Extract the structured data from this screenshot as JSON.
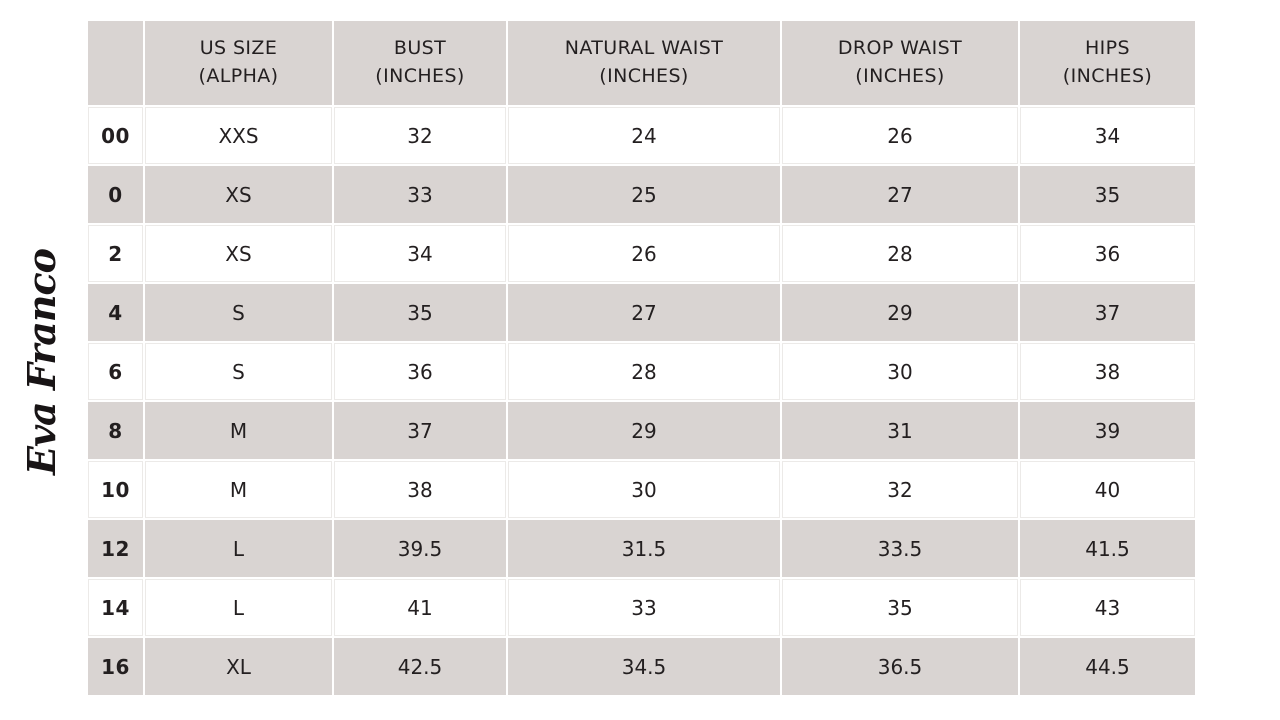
{
  "brand": {
    "logo_text": "Eva Franco"
  },
  "colors": {
    "header_bg": "#d9d4d2",
    "row_alt_bg": "#d9d4d2",
    "white_row_grid": "#eceae8",
    "text": "#231f20",
    "logo": "#181415"
  },
  "table": {
    "headers": [
      {
        "line1": "US SIZE",
        "line2": "(ALPHA)"
      },
      {
        "line1": "BUST",
        "line2": "(INCHES)"
      },
      {
        "line1": "NATURAL WAIST",
        "line2": "(INCHES)"
      },
      {
        "line1": "DROP WAIST",
        "line2": "(INCHES)"
      },
      {
        "line1": "HIPS",
        "line2": "(INCHES)"
      }
    ],
    "rows": [
      {
        "cells": [
          "00",
          "XXS",
          "32",
          "24",
          "26",
          "34"
        ]
      },
      {
        "cells": [
          "0",
          "XS",
          "33",
          "25",
          "27",
          "35"
        ]
      },
      {
        "cells": [
          "2",
          "XS",
          "34",
          "26",
          "28",
          "36"
        ]
      },
      {
        "cells": [
          "4",
          "S",
          "35",
          "27",
          "29",
          "37"
        ]
      },
      {
        "cells": [
          "6",
          "S",
          "36",
          "28",
          "30",
          "38"
        ]
      },
      {
        "cells": [
          "8",
          "M",
          "37",
          "29",
          "31",
          "39"
        ]
      },
      {
        "cells": [
          "10",
          "M",
          "38",
          "30",
          "32",
          "40"
        ]
      },
      {
        "cells": [
          "12",
          "L",
          "39.5",
          "31.5",
          "33.5",
          "41.5"
        ]
      },
      {
        "cells": [
          "14",
          "L",
          "41",
          "33",
          "35",
          "43"
        ]
      },
      {
        "cells": [
          "16",
          "XL",
          "42.5",
          "34.5",
          "36.5",
          "44.5"
        ]
      }
    ]
  },
  "chart_data": {
    "type": "table",
    "title": "Eva Franco women's size chart (inches)",
    "columns": [
      "US SIZE",
      "US SIZE (ALPHA)",
      "BUST (INCHES)",
      "NATURAL WAIST (INCHES)",
      "DROP WAIST (INCHES)",
      "HIPS (INCHES)"
    ],
    "rows": [
      [
        "00",
        "XXS",
        32,
        24,
        26,
        34
      ],
      [
        "0",
        "XS",
        33,
        25,
        27,
        35
      ],
      [
        "2",
        "XS",
        34,
        26,
        28,
        36
      ],
      [
        "4",
        "S",
        35,
        27,
        29,
        37
      ],
      [
        "6",
        "S",
        36,
        28,
        30,
        38
      ],
      [
        "8",
        "M",
        37,
        29,
        31,
        39
      ],
      [
        "10",
        "M",
        38,
        30,
        32,
        40
      ],
      [
        "12",
        "L",
        39.5,
        31.5,
        33.5,
        41.5
      ],
      [
        "14",
        "L",
        41,
        33,
        35,
        43
      ],
      [
        "16",
        "XL",
        42.5,
        34.5,
        36.5,
        44.5
      ]
    ]
  }
}
